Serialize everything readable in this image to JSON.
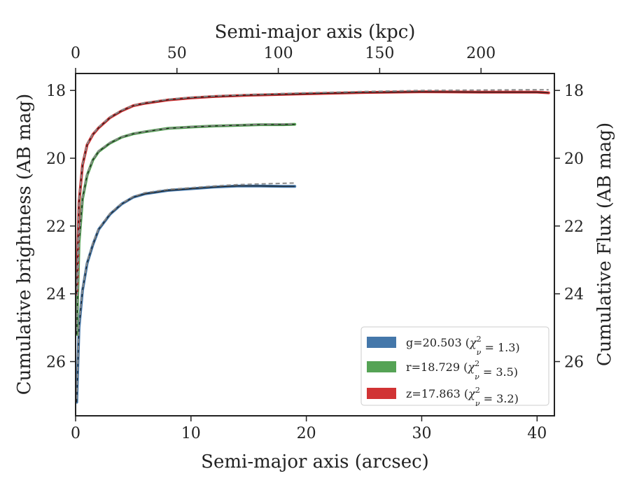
{
  "chart_data": {
    "type": "line",
    "xlabel": "Semi-major axis (arcsec)",
    "ylabel": "Cumulative brightness (AB mag)",
    "x2label": "Semi-major axis (kpc)",
    "y2label": "Cumulative Flux (AB mag)",
    "xlim": [
      0,
      41.5
    ],
    "ylim": [
      27.6,
      17.5
    ],
    "x2lim": [
      0,
      236.2
    ],
    "y_inverted": true,
    "xticks": [
      "0",
      "10",
      "20",
      "30",
      "40"
    ],
    "yticks": [
      "18",
      "20",
      "22",
      "24",
      "26"
    ],
    "x2ticks": [
      "0",
      "50",
      "100",
      "150",
      "200"
    ],
    "legend_position": "lower-right",
    "series": [
      {
        "name": "g=20.503 (χ²ν = 1.3)",
        "legend_base": "g=20.503 (",
        "legend_chi": "χ",
        "legend_sup": "2",
        "legend_sub": "ν",
        "legend_rest": " = 1.3)",
        "color": "#4477aa",
        "x": [
          0.1,
          0.3,
          0.6,
          1.0,
          1.5,
          2.0,
          3.0,
          4.0,
          5.0,
          6.0,
          8.0,
          10.0,
          12.0,
          14.0,
          16.0,
          18.0,
          19.0
        ],
        "y": [
          27.2,
          25.0,
          23.9,
          23.1,
          22.55,
          22.1,
          21.65,
          21.35,
          21.15,
          21.05,
          20.95,
          20.9,
          20.85,
          20.82,
          20.82,
          20.83,
          20.83
        ]
      },
      {
        "name": "r=18.729 (χ²ν = 3.5)",
        "legend_base": "r=18.729 (",
        "legend_chi": "χ",
        "legend_sup": "2",
        "legend_sub": "ν",
        "legend_rest": " = 3.5)",
        "color": "#55a355",
        "x": [
          0.1,
          0.3,
          0.6,
          1.0,
          1.5,
          2.0,
          3.0,
          4.0,
          5.0,
          6.0,
          8.0,
          10.0,
          12.0,
          14.0,
          16.0,
          18.0,
          19.0
        ],
        "y": [
          25.2,
          22.5,
          21.2,
          20.5,
          20.05,
          19.8,
          19.55,
          19.38,
          19.28,
          19.22,
          19.12,
          19.08,
          19.05,
          19.03,
          19.01,
          19.01,
          19.0
        ]
      },
      {
        "name": "z=17.863 (χ²ν = 3.2)",
        "legend_base": "z=17.863 (",
        "legend_chi": "χ",
        "legend_sup": "2",
        "legend_sub": "ν",
        "legend_rest": " = 3.2)",
        "color": "#d13334",
        "x": [
          0.1,
          0.3,
          0.6,
          1.0,
          1.5,
          2.0,
          3.0,
          4.0,
          5.0,
          6.0,
          8.0,
          10.0,
          12.0,
          15.0,
          20.0,
          25.0,
          30.0,
          35.0,
          40.0,
          41.0
        ],
        "y": [
          24.0,
          21.3,
          20.2,
          19.6,
          19.3,
          19.1,
          18.8,
          18.6,
          18.45,
          18.38,
          18.28,
          18.22,
          18.18,
          18.14,
          18.1,
          18.06,
          18.04,
          18.05,
          18.05,
          18.07
        ]
      }
    ],
    "models": [
      {
        "color": "#888888",
        "x": [
          0.1,
          0.3,
          0.6,
          1.0,
          1.5,
          2.0,
          3.0,
          4.0,
          5.0,
          6.0,
          8.0,
          10.0,
          12.0,
          14.0,
          16.0,
          18.0,
          19.0
        ],
        "y": [
          27.1,
          24.9,
          23.85,
          23.05,
          22.5,
          22.07,
          21.62,
          21.33,
          21.13,
          21.02,
          20.92,
          20.87,
          20.82,
          20.78,
          20.76,
          20.74,
          20.73
        ]
      },
      {
        "color": "#888888",
        "x": [
          0.1,
          0.3,
          0.6,
          1.0,
          1.5,
          2.0,
          3.0,
          4.0,
          5.0,
          6.0,
          8.0,
          10.0,
          12.0,
          14.0,
          16.0,
          18.0,
          19.0
        ],
        "y": [
          25.1,
          22.45,
          21.15,
          20.47,
          20.03,
          19.78,
          19.53,
          19.37,
          19.27,
          19.21,
          19.12,
          19.07,
          19.04,
          19.02,
          19.0,
          18.99,
          18.99
        ]
      },
      {
        "color": "#888888",
        "x": [
          0.1,
          0.3,
          0.6,
          1.0,
          1.5,
          2.0,
          3.0,
          4.0,
          5.0,
          6.0,
          8.0,
          10.0,
          12.0,
          15.0,
          20.0,
          25.0,
          30.0,
          35.0,
          40.0,
          41.0
        ],
        "y": [
          23.9,
          21.25,
          20.17,
          19.58,
          19.28,
          19.08,
          18.78,
          18.58,
          18.44,
          18.36,
          18.26,
          18.2,
          18.16,
          18.12,
          18.07,
          18.03,
          18.0,
          17.99,
          17.98,
          17.98
        ]
      }
    ]
  }
}
